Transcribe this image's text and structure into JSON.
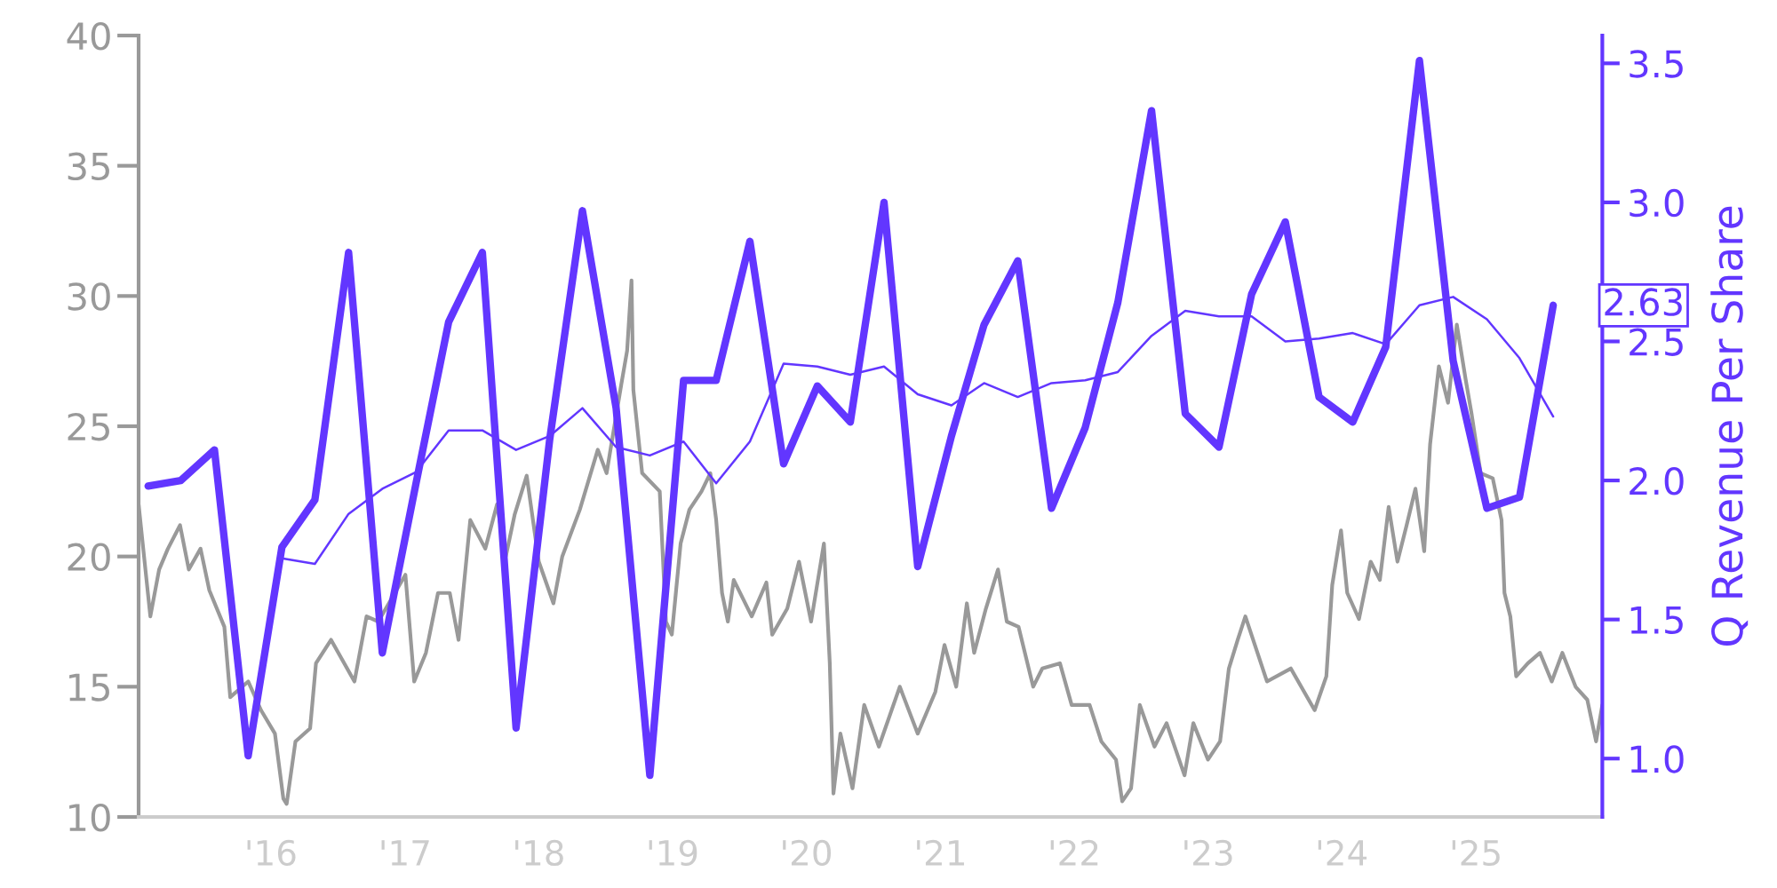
{
  "chart_data": {
    "type": "line",
    "xlim": [
      "2015-01-05",
      "2025-12-12"
    ],
    "xticks": [
      {
        "value": "2016-01-01",
        "label": "'16"
      },
      {
        "value": "2017-01-01",
        "label": "'17"
      },
      {
        "value": "2018-01-01",
        "label": "'18"
      },
      {
        "value": "2019-01-01",
        "label": "'19"
      },
      {
        "value": "2020-01-01",
        "label": "'20"
      },
      {
        "value": "2021-01-01",
        "label": "'21"
      },
      {
        "value": "2022-01-01",
        "label": "'22"
      },
      {
        "value": "2023-01-01",
        "label": "'23"
      },
      {
        "value": "2024-01-01",
        "label": "'24"
      },
      {
        "value": "2025-01-01",
        "label": "'25"
      }
    ],
    "ylim": [
      10,
      40
    ],
    "yticks": [
      10,
      15,
      20,
      25,
      30,
      35,
      40
    ],
    "y2lim": [
      0.79,
      3.6
    ],
    "y2ticks": [
      {
        "value": 1,
        "label": "1.0"
      },
      {
        "value": 1.5,
        "label": "1.5"
      },
      {
        "value": 2,
        "label": "2.0"
      },
      {
        "value": 2.5,
        "label": "2.5"
      },
      {
        "value": 3,
        "label": "3.0"
      },
      {
        "value": 3.5,
        "label": "3.5"
      }
    ],
    "y2label": "Q Revenue Per Share",
    "annotations": [
      "2.63"
    ],
    "series": [
      {
        "color": "#999999",
        "x": [
          "2015-01-05",
          "2015-02-06",
          "2015-03-02",
          "2015-03-26",
          "2015-04-28",
          "2015-05-22",
          "2015-06-23",
          "2015-07-17",
          "2015-08-27",
          "2015-09-12",
          "2015-10-31",
          "2015-12-05",
          "2016-01-12",
          "2016-02-04",
          "2016-02-13",
          "2016-03-08",
          "2016-04-17",
          "2016-05-03",
          "2016-06-13",
          "2016-08-16",
          "2016-09-18",
          "2016-10-20",
          "2017-01-02",
          "2017-01-26",
          "2017-02-27",
          "2017-04-01",
          "2017-05-03",
          "2017-05-27",
          "2017-06-28",
          "2017-08-08",
          "2017-09-09",
          "2017-10-03",
          "2017-10-27",
          "2017-11-29",
          "2018-01-01",
          "2018-02-10",
          "2018-03-06",
          "2018-04-23",
          "2018-06-11",
          "2018-07-05",
          "2018-08-14",
          "2018-08-30",
          "2018-09-11",
          "2018-09-16",
          "2018-10-10",
          "2018-11-27",
          "2018-12-14",
          "2018-12-30",
          "2019-01-23",
          "2019-02-16",
          "2019-03-21",
          "2019-04-14",
          "2019-04-30",
          "2019-05-16",
          "2019-06-01",
          "2019-06-17",
          "2019-08-05",
          "2019-09-14",
          "2019-09-30",
          "2019-11-10",
          "2019-12-12",
          "2020-01-14",
          "2020-02-18",
          "2020-03-05",
          "2020-03-15",
          "2020-04-03",
          "2020-05-06",
          "2020-06-07",
          "2020-07-17",
          "2020-09-12",
          "2020-10-31",
          "2020-12-18",
          "2021-01-12",
          "2021-02-13",
          "2021-03-14",
          "2021-04-03",
          "2021-05-05",
          "2021-06-07",
          "2021-07-01",
          "2021-08-02",
          "2021-09-11",
          "2021-10-06",
          "2021-11-23",
          "2021-12-25",
          "2022-02-12",
          "2022-03-16",
          "2022-04-25",
          "2022-05-12",
          "2022-06-05",
          "2022-06-29",
          "2022-08-08",
          "2022-09-10",
          "2022-10-29",
          "2022-11-22",
          "2023-01-01",
          "2023-02-03",
          "2023-02-27",
          "2023-03-23",
          "2023-04-13",
          "2023-06-11",
          "2023-08-15",
          "2023-10-19",
          "2023-11-20",
          "2023-12-06",
          "2023-12-30",
          "2024-01-16",
          "2024-02-17",
          "2024-03-20",
          "2024-04-14",
          "2024-05-08",
          "2024-06-01",
          "2024-06-26",
          "2024-07-20",
          "2024-08-13",
          "2024-08-29",
          "2024-09-22",
          "2024-10-17",
          "2024-11-10",
          "2024-12-04",
          "2024-12-20",
          "2025-01-14",
          "2025-02-16",
          "2025-03-12",
          "2025-03-20",
          "2025-04-05",
          "2025-04-21",
          "2025-05-23",
          "2025-06-25",
          "2025-07-27",
          "2025-08-25",
          "2025-09-30",
          "2025-11-01",
          "2025-11-25",
          "2025-12-12"
        ],
        "values": [
          22.0,
          17.7,
          19.5,
          20.3,
          21.2,
          19.5,
          20.3,
          18.7,
          17.3,
          14.6,
          15.2,
          14.1,
          13.2,
          10.7,
          10.5,
          12.9,
          13.4,
          15.9,
          16.8,
          15.2,
          17.7,
          17.5,
          19.3,
          15.2,
          16.3,
          18.6,
          18.6,
          16.8,
          21.4,
          20.3,
          22.0,
          20.0,
          21.6,
          23.1,
          19.8,
          18.2,
          20.0,
          21.8,
          24.1,
          23.2,
          26.6,
          27.9,
          30.6,
          26.4,
          23.2,
          22.5,
          17.5,
          17.0,
          20.5,
          21.8,
          22.5,
          23.2,
          21.4,
          18.6,
          17.5,
          19.1,
          17.7,
          19.0,
          17.0,
          18.0,
          19.8,
          17.5,
          20.5,
          15.9,
          10.9,
          13.2,
          11.1,
          14.3,
          12.7,
          15.0,
          13.2,
          14.8,
          16.6,
          15.0,
          18.2,
          16.3,
          18.0,
          19.5,
          17.5,
          17.3,
          15.0,
          15.7,
          15.9,
          14.3,
          14.3,
          12.9,
          12.2,
          10.6,
          11.1,
          14.3,
          12.7,
          13.6,
          11.6,
          13.6,
          12.2,
          12.9,
          15.7,
          16.8,
          17.7,
          15.2,
          15.7,
          14.1,
          15.4,
          18.9,
          21.0,
          18.6,
          17.6,
          19.8,
          19.1,
          21.9,
          19.8,
          21.2,
          22.6,
          20.2,
          24.3,
          27.3,
          25.9,
          28.9,
          26.8,
          25.5,
          23.2,
          23.0,
          21.4,
          18.6,
          17.7,
          15.4,
          15.9,
          16.3,
          15.2,
          16.3,
          15.0,
          14.5,
          12.9,
          14.3
        ]
      },
      {
        "color": "#6236ff",
        "axis": "y2",
        "x": [
          "2015-01-31",
          "2015-04-30",
          "2015-07-31",
          "2015-10-31",
          "2016-01-31",
          "2016-04-30",
          "2016-07-31",
          "2016-10-31",
          "2017-01-31",
          "2017-04-30",
          "2017-07-31",
          "2017-10-31",
          "2018-01-31",
          "2018-04-30",
          "2018-07-31",
          "2018-10-31",
          "2019-01-31",
          "2019-04-30",
          "2019-07-31",
          "2019-10-31",
          "2020-01-31",
          "2020-04-30",
          "2020-07-31",
          "2020-10-31",
          "2021-01-31",
          "2021-04-30",
          "2021-07-31",
          "2021-10-31",
          "2022-01-31",
          "2022-04-30",
          "2022-07-31",
          "2022-10-31",
          "2023-01-31",
          "2023-04-30",
          "2023-07-31",
          "2023-10-31",
          "2024-01-31",
          "2024-04-30",
          "2024-07-31",
          "2024-10-31",
          "2025-01-31",
          "2025-04-30",
          "2025-07-31"
        ],
        "values": [
          1.98,
          2.0,
          2.11,
          1.01,
          1.76,
          1.93,
          2.82,
          1.38,
          1.99,
          2.57,
          2.82,
          1.11,
          2.15,
          2.97,
          2.26,
          0.94,
          2.36,
          2.36,
          2.86,
          2.06,
          2.34,
          2.21,
          3.0,
          1.69,
          2.16,
          2.56,
          2.79,
          1.9,
          2.19,
          2.64,
          3.33,
          2.24,
          2.12,
          2.67,
          2.93,
          2.3,
          2.21,
          2.48,
          3.51,
          2.43,
          1.9,
          1.94,
          2.63
        ]
      },
      {
        "color": "#6236ff",
        "axis": "y2",
        "x": [
          "2016-01-31",
          "2016-04-30",
          "2016-07-31",
          "2016-10-31",
          "2017-01-31",
          "2017-04-30",
          "2017-07-31",
          "2017-10-31",
          "2018-01-31",
          "2018-04-30",
          "2018-07-31",
          "2018-10-31",
          "2019-01-31",
          "2019-04-30",
          "2019-07-31",
          "2019-10-31",
          "2020-01-31",
          "2020-04-30",
          "2020-07-31",
          "2020-10-31",
          "2021-01-31",
          "2021-04-30",
          "2021-07-31",
          "2021-10-31",
          "2022-01-31",
          "2022-04-30",
          "2022-07-31",
          "2022-10-31",
          "2023-01-31",
          "2023-04-30",
          "2023-07-31",
          "2023-10-31",
          "2024-01-31",
          "2024-04-30",
          "2024-07-31",
          "2024-10-31",
          "2025-01-31",
          "2025-04-30",
          "2025-07-31"
        ],
        "values": [
          1.72,
          1.7,
          1.88,
          1.97,
          2.03,
          2.18,
          2.18,
          2.11,
          2.16,
          2.26,
          2.12,
          2.09,
          2.14,
          1.99,
          2.14,
          2.42,
          2.41,
          2.38,
          2.41,
          2.31,
          2.27,
          2.35,
          2.3,
          2.35,
          2.36,
          2.39,
          2.52,
          2.61,
          2.59,
          2.59,
          2.5,
          2.51,
          2.53,
          2.49,
          2.63,
          2.66,
          2.58,
          2.44,
          2.23
        ]
      }
    ]
  }
}
